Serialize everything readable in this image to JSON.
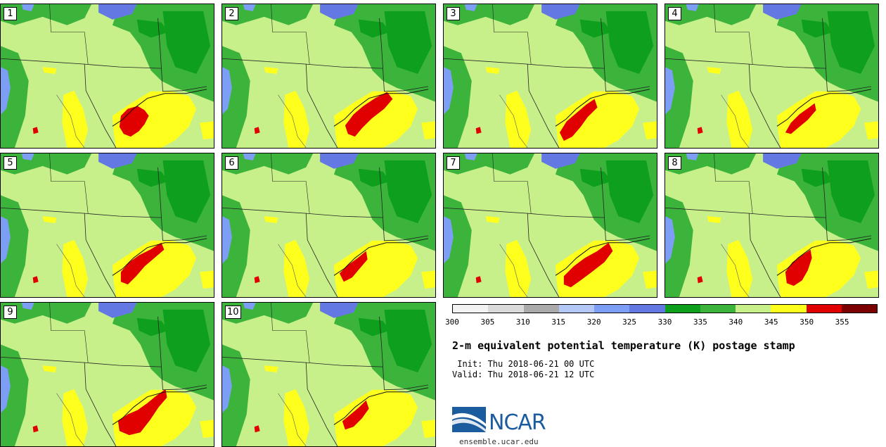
{
  "title": "2-m equivalent potential temperature (K) postage stamp",
  "init_line": " Init: Thu 2018-06-21 00 UTC",
  "valid_line": "Valid: Thu 2018-06-21 12 UTC",
  "colorbar": {
    "colors": [
      "#f2f2f2",
      "#dadada",
      "#aaaaaa",
      "#b4c8f8",
      "#7c9ef4",
      "#6478e4",
      "#0e9f1c",
      "#3cb43c",
      "#c8f08a",
      "#ffff1e",
      "#e10000",
      "#7d0000"
    ],
    "labels": [
      "300",
      "305",
      "310",
      "315",
      "320",
      "325",
      "330",
      "335",
      "340",
      "345",
      "350",
      "355"
    ]
  },
  "members": [
    {
      "number": "1"
    },
    {
      "number": "2"
    },
    {
      "number": "3"
    },
    {
      "number": "4"
    },
    {
      "number": "5"
    },
    {
      "number": "6"
    },
    {
      "number": "7"
    },
    {
      "number": "8"
    },
    {
      "number": "9"
    },
    {
      "number": "10"
    }
  ],
  "logo": {
    "text": "NCAR",
    "url": "ensemble.ucar.edu"
  }
}
